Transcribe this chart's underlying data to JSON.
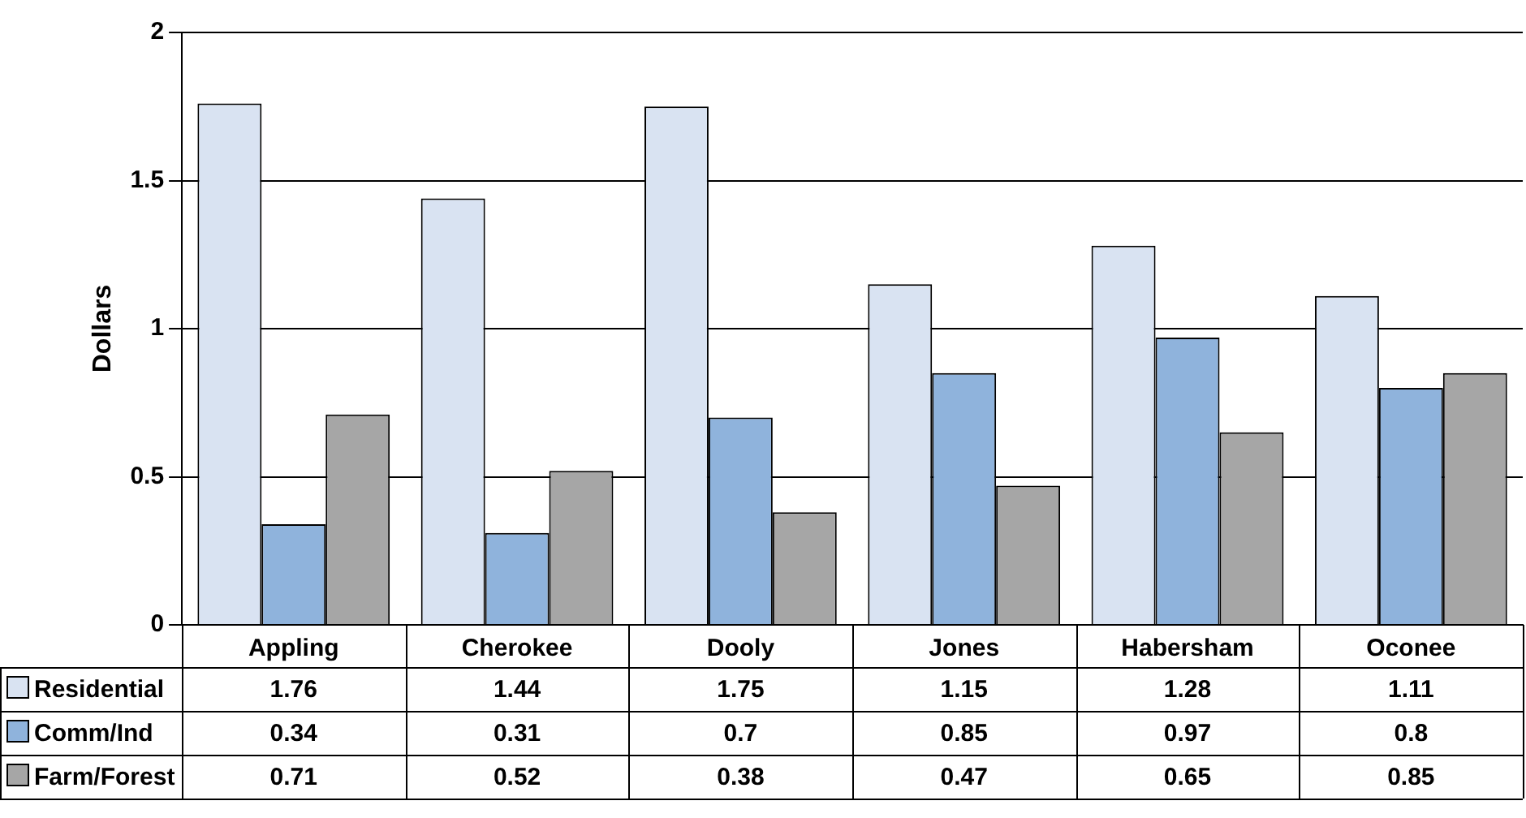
{
  "chart_data": {
    "type": "bar",
    "ylabel": "Dollars",
    "categories": [
      "Appling",
      "Cherokee",
      "Dooly",
      "Jones",
      "Habersham",
      "Oconee"
    ],
    "series": [
      {
        "name": "Residential",
        "color": "#d9e3f2",
        "values": [
          1.76,
          1.44,
          1.75,
          1.15,
          1.28,
          1.11
        ]
      },
      {
        "name": "Comm/Ind",
        "color": "#8fb3dc",
        "values": [
          0.34,
          0.31,
          0.7,
          0.85,
          0.97,
          0.8
        ]
      },
      {
        "name": "Farm/Forest",
        "color": "#a6a6a6",
        "values": [
          0.71,
          0.52,
          0.38,
          0.47,
          0.65,
          0.85
        ]
      }
    ],
    "ylim": [
      0,
      2
    ],
    "yticks": [
      0,
      0.5,
      1,
      1.5,
      2
    ],
    "grid": "y",
    "legend": "bottom left",
    "data_labels": true
  }
}
